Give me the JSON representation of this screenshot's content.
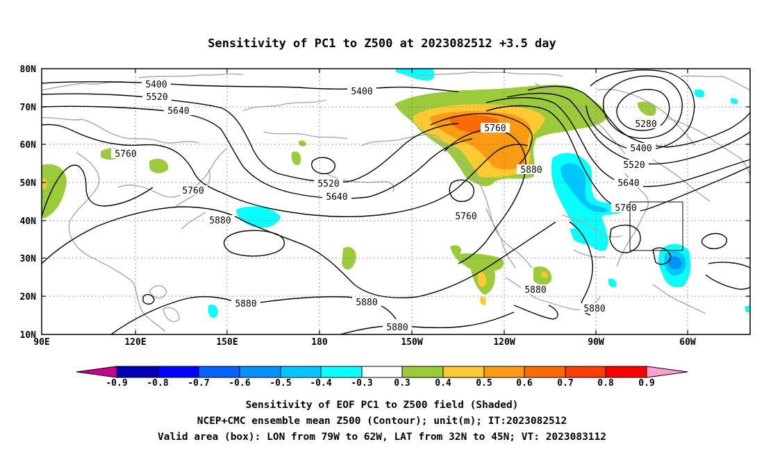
{
  "title": "Sensitivity of PC1 to Z500 at 2023082512 +3.5 day",
  "map": {
    "lat_labels": [
      "80N",
      "70N",
      "60N",
      "50N",
      "40N",
      "30N",
      "20N",
      "10N"
    ],
    "lon_labels": [
      "90E",
      "120E",
      "150E",
      "180",
      "150W",
      "120W",
      "90W",
      "60W"
    ],
    "contour_labels": [
      "5400",
      "5520",
      "5640",
      "5760",
      "5400",
      "5760",
      "5280",
      "5400",
      "5520",
      "5640",
      "5760",
      "5880",
      "5520",
      "5640",
      "5760",
      "5760",
      "5880",
      "5880",
      "5880",
      "5880",
      "5880",
      "5880"
    ],
    "valid_area_box": {
      "lon_from": "79W",
      "lon_to": "62W",
      "lat_from": "32N",
      "lat_to": "45N"
    },
    "colors": {
      "positive": [
        "#9bca3b",
        "#fec932",
        "#fc9a14",
        "#fc6a06",
        "#fc3c00",
        "#fc0000"
      ],
      "negative": [
        "#09fefe",
        "#00c6fe",
        "#0092fe",
        "#0060fe",
        "#0000fe",
        "#0000b8"
      ],
      "contour": "#000000",
      "coastline": "#a8a8a8",
      "grid": "#7a7a7a"
    }
  },
  "colorbar": {
    "labels": [
      "-0.9",
      "-0.8",
      "-0.7",
      "-0.6",
      "-0.5",
      "-0.4",
      "-0.3",
      "0.3",
      "0.4",
      "0.5",
      "0.6",
      "0.7",
      "0.8",
      "0.9"
    ],
    "colors": [
      "#c8008c",
      "#0000b8",
      "#0000fe",
      "#0060fe",
      "#0092fe",
      "#00c6fe",
      "#09fefe",
      "#ffffff",
      "#9bca3b",
      "#fec932",
      "#fc9a14",
      "#fc6a06",
      "#fc3c00",
      "#fc0000",
      "#fca0d2"
    ]
  },
  "caption": [
    "Sensitivity of EOF PC1 to Z500 field (Shaded)",
    "NCEP+CMC ensemble mean Z500 (Contour); unit(m); IT:2023082512",
    "Valid area (box): LON from 79W to 62W, LAT from 32N to 45N; VT: 2023083112"
  ]
}
